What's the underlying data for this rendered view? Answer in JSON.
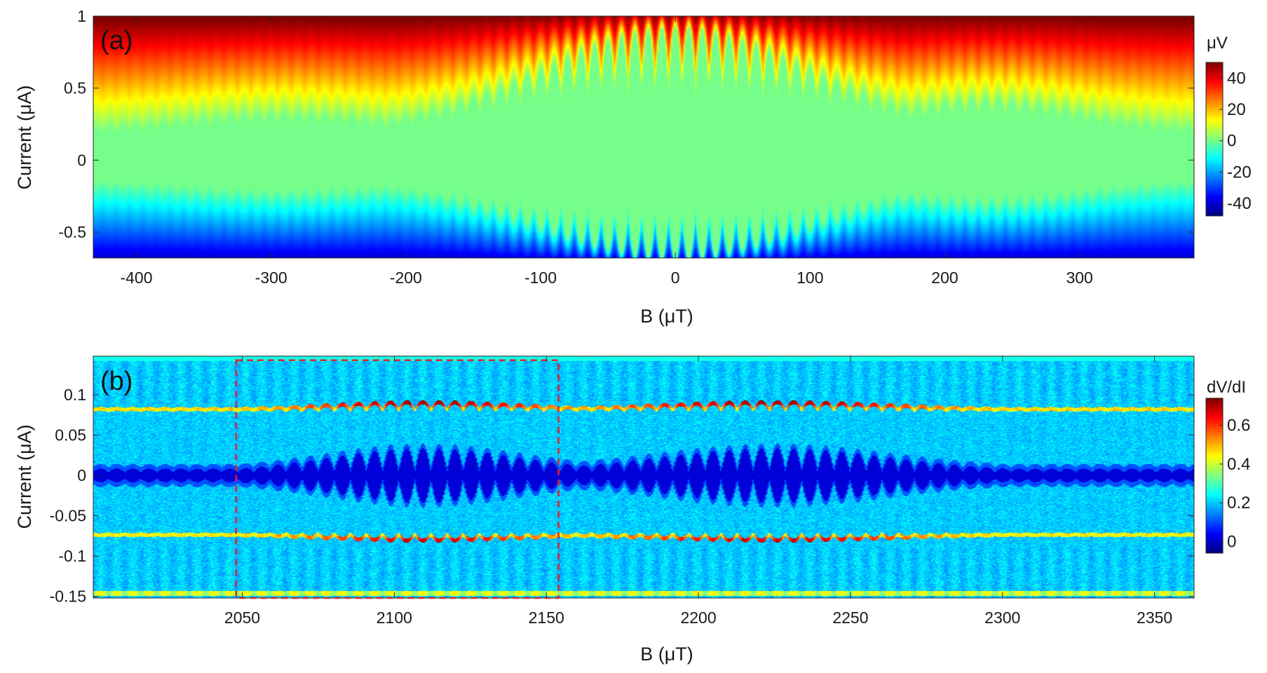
{
  "chart_data": [
    {
      "type": "heatmap",
      "panel_label": "(a)",
      "xlabel": "B (μT)",
      "ylabel": "Current  (μA)",
      "xlim": [
        -432,
        385
      ],
      "ylim": [
        -0.68,
        1.0
      ],
      "x_ticks": [
        -400,
        -300,
        -200,
        -100,
        0,
        100,
        200,
        300
      ],
      "x_tick_labels": [
        "-400",
        "-300",
        "-200",
        "-100",
        "0",
        "100",
        "200",
        "300"
      ],
      "y_ticks": [
        -0.5,
        0,
        0.5,
        1
      ],
      "y_tick_labels": [
        "-0.5",
        "0",
        "0.5",
        "1"
      ],
      "colorbar": {
        "label": "μV",
        "range": [
          -48,
          50
        ],
        "ticks": [
          -40,
          -20,
          0,
          20,
          40
        ],
        "tick_labels": [
          "-40",
          "-20",
          "0",
          "20",
          "40"
        ],
        "colormap": "jet"
      },
      "pattern": {
        "oscillation_period": 10,
        "lobes": [
          {
            "center": 0,
            "half_width": 140,
            "peak_switching_current": 0.92
          },
          {
            "center": 230,
            "half_width": 95,
            "peak_switching_current": 0.42
          },
          {
            "center": -290,
            "half_width": 100,
            "peak_switching_current": 0.32
          }
        ],
        "baseline_switching_current": 0.2
      }
    },
    {
      "type": "heatmap",
      "panel_label": "(b)",
      "xlabel": "B (μT)",
      "ylabel": "Current  (μA)",
      "xlim": [
        2001,
        2363
      ],
      "ylim": [
        -0.152,
        0.148
      ],
      "x_ticks": [
        2050,
        2100,
        2150,
        2200,
        2250,
        2300,
        2350
      ],
      "x_tick_labels": [
        "2050",
        "2100",
        "2150",
        "2200",
        "2250",
        "2300",
        "2350"
      ],
      "y_ticks": [
        -0.15,
        -0.1,
        -0.05,
        0,
        0.05,
        0.1
      ],
      "y_tick_labels": [
        "-0.15",
        "-0.1",
        "-0.05",
        "0",
        "0.05",
        "0.1"
      ],
      "colorbar": {
        "label": "dV/dI",
        "range": [
          -0.06,
          0.74
        ],
        "ticks": [
          0,
          0.2,
          0.4,
          0.6
        ],
        "tick_labels": [
          "0",
          "0.2",
          "0.4",
          "0.6"
        ],
        "colormap": "jet"
      },
      "highlight_box": {
        "x": [
          2048,
          2154
        ],
        "y": [
          -0.152,
          0.143
        ],
        "color": "#e32222",
        "style": "dashed"
      },
      "pattern": {
        "oscillation_period": 5.3,
        "envelope_centers": [
          2110,
          2225
        ],
        "switching_current_upper": 0.085,
        "switching_current_lower": -0.075
      }
    }
  ],
  "colors": {
    "highlight_box": "#e32222",
    "axis": "#262626"
  }
}
